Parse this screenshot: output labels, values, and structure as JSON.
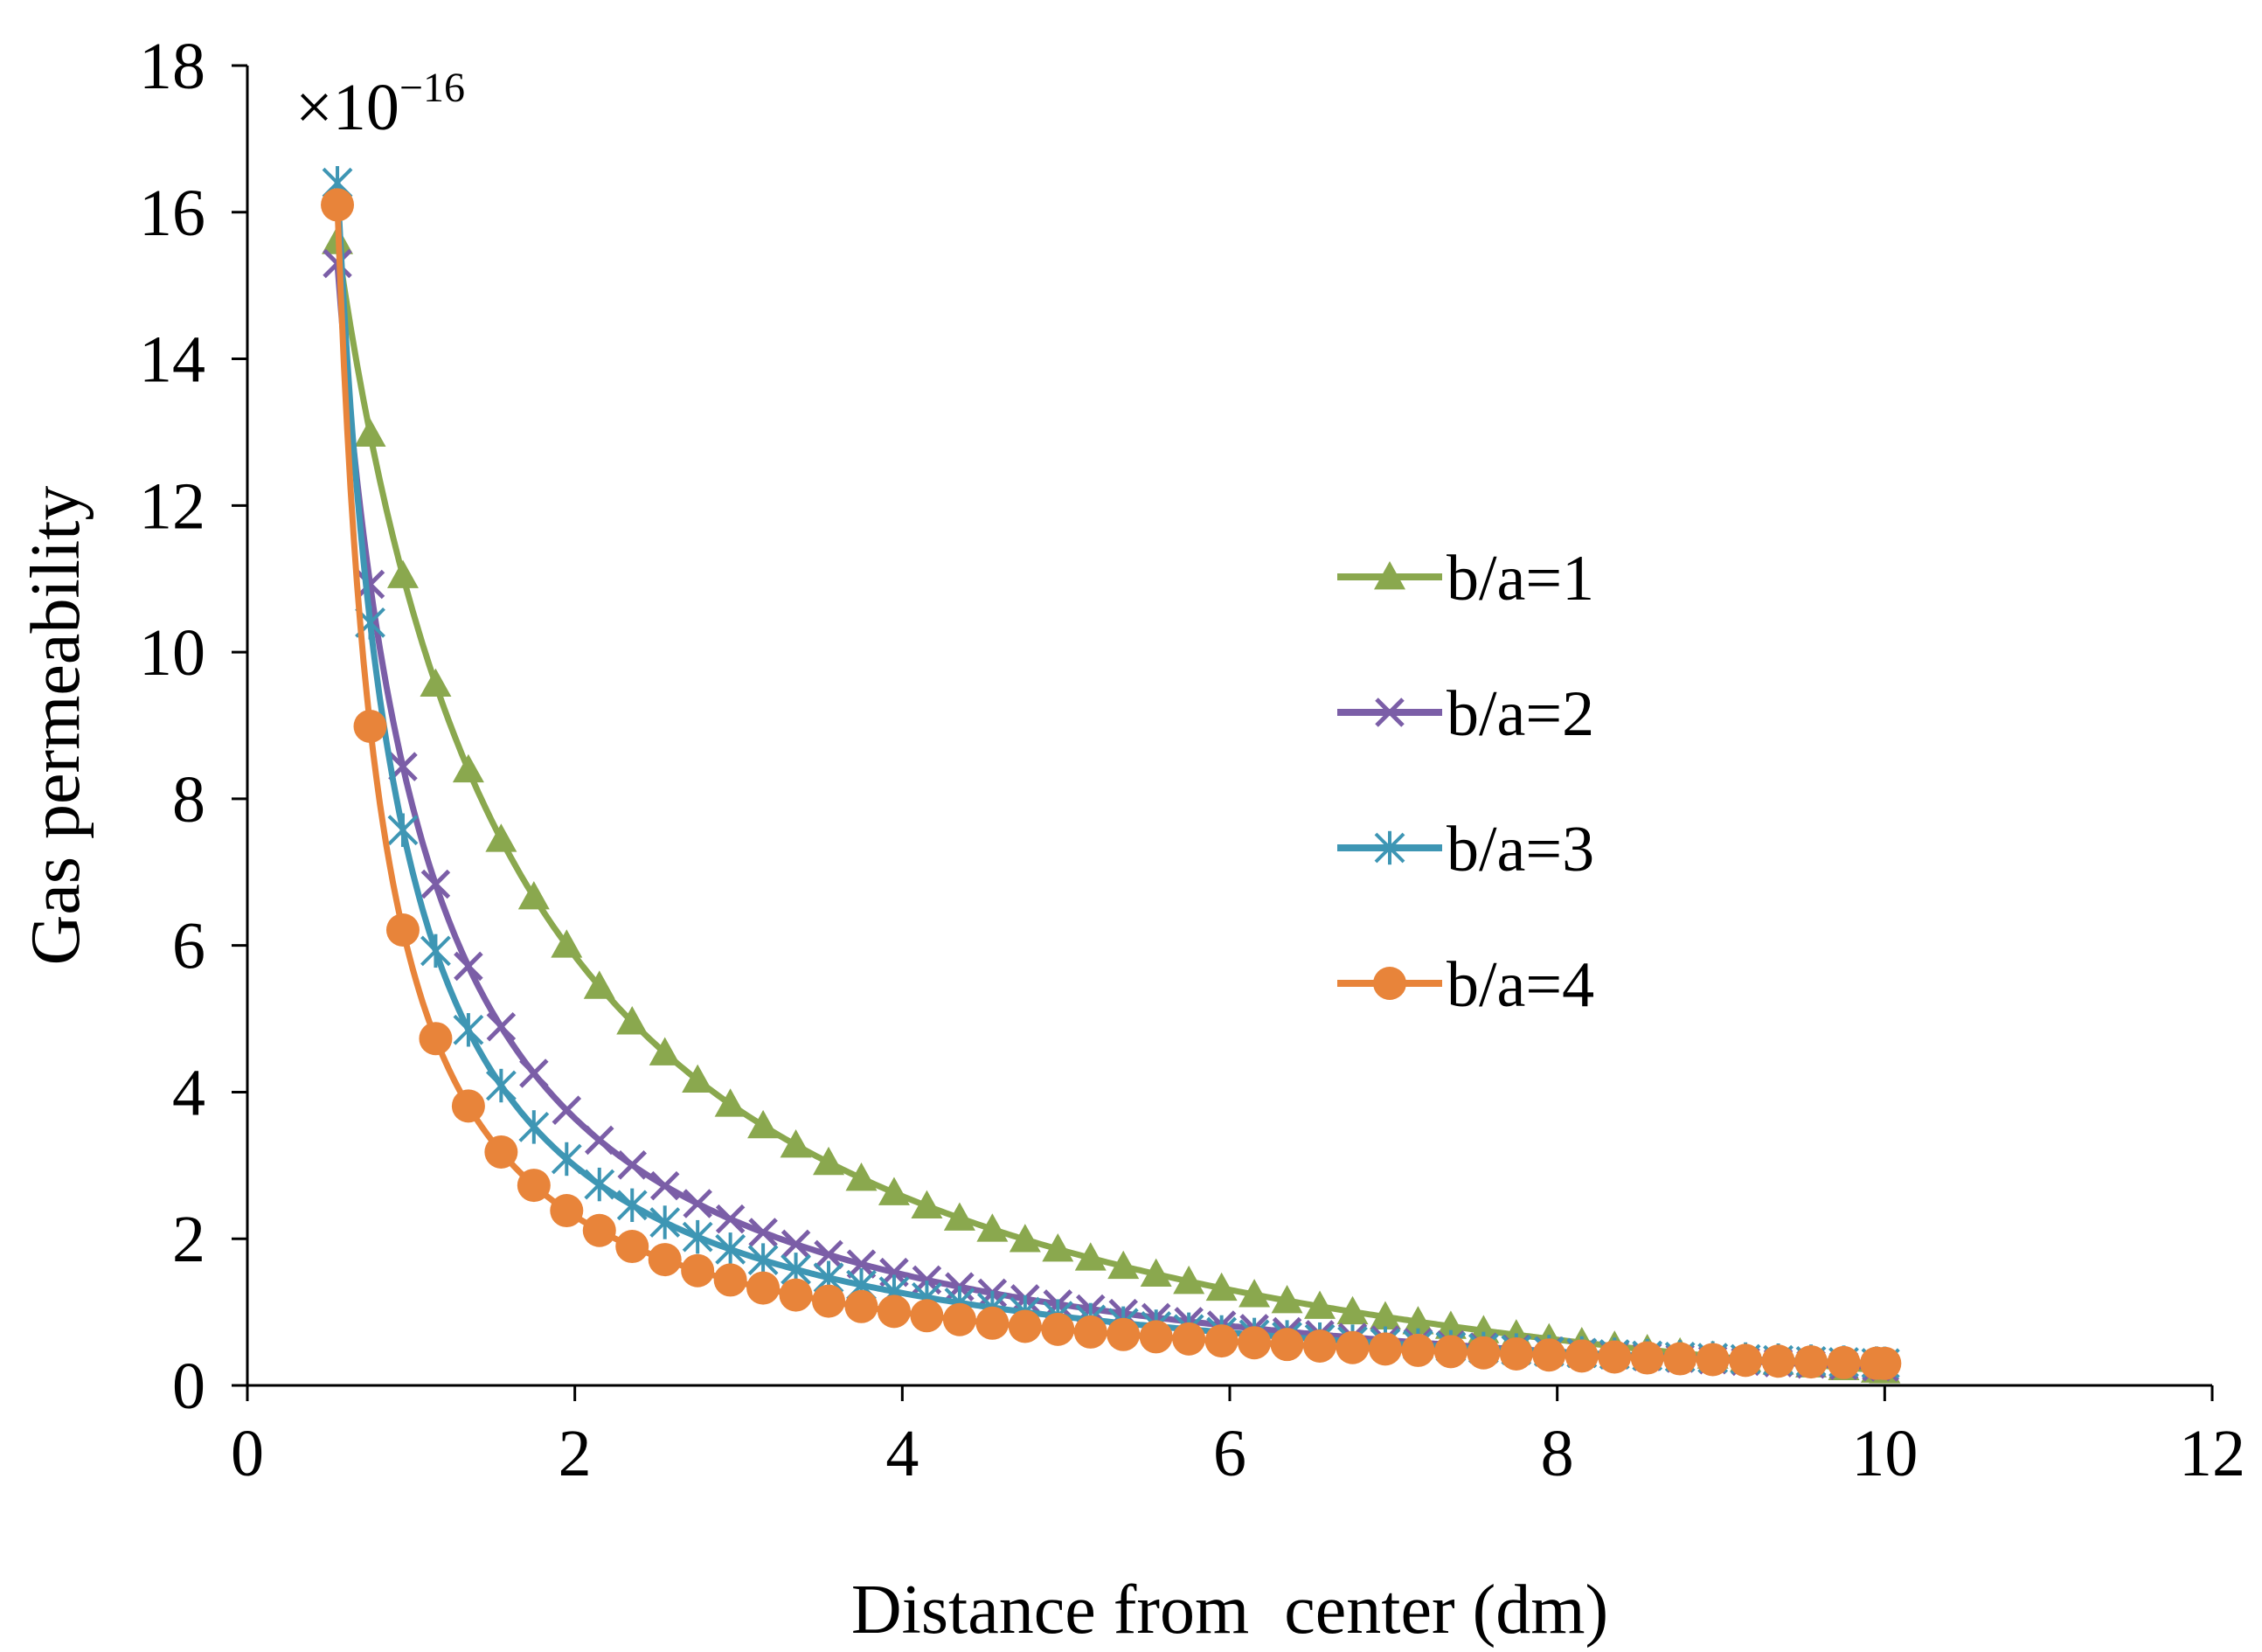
{
  "chart_data": {
    "type": "line",
    "title": "",
    "xlabel": "Distance from  center (dm)",
    "ylabel": "Gas permeability",
    "xlim": [
      0,
      12
    ],
    "ylim": [
      0,
      18
    ],
    "xticks": [
      "0",
      "2",
      "4",
      "6",
      "8",
      "10",
      "12"
    ],
    "yticks": [
      "0",
      "2",
      "4",
      "6",
      "8",
      "10",
      "12",
      "14",
      "16",
      "18"
    ],
    "scale_multiplier": {
      "prefix": "×10",
      "exponent": "−16"
    },
    "grid": false,
    "legend_position": "right-center",
    "x_start": 0.55,
    "x_end": 10.0,
    "x_marker_step": 0.2,
    "series": [
      {
        "name": "b/a=1",
        "marker": "triangle",
        "color": "#8AA84E",
        "k": 0.9,
        "y0": 15.6,
        "y_end": 0.2
      },
      {
        "name": "b/a=2",
        "marker": "x",
        "color": "#7B5EA7",
        "k": 1.9,
        "y0": 15.3,
        "y_end": 0.25
      },
      {
        "name": "b/a=3",
        "marker": "star",
        "color": "#3E96B4",
        "k": 2.8,
        "y0": 16.4,
        "y_end": 0.3
      },
      {
        "name": "b/a=4",
        "marker": "circle",
        "color": "#E8843A",
        "k": 3.9,
        "y0": 16.1,
        "y_end": 0.3
      }
    ]
  }
}
